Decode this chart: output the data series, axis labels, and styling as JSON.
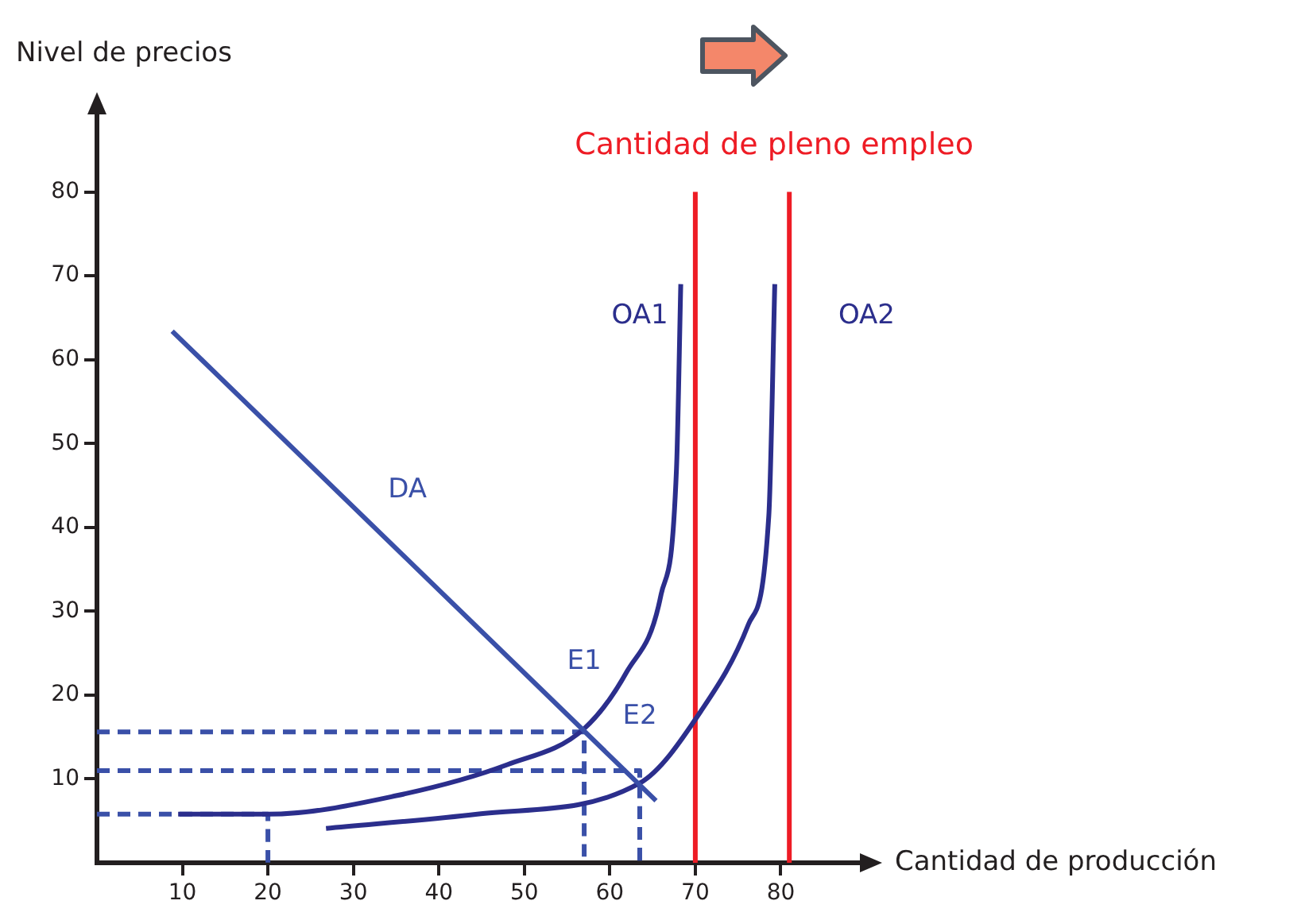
{
  "chart_data": {
    "type": "line",
    "xlabel": "Cantidad de producción",
    "ylabel": "Nivel de precios",
    "xlim": [
      0,
      90
    ],
    "ylim": [
      0,
      90
    ],
    "xticks": [
      10,
      20,
      30,
      40,
      50,
      60,
      70,
      80
    ],
    "yticks": [
      10,
      20,
      30,
      40,
      50,
      60,
      70,
      80
    ],
    "grid": false,
    "legend": false,
    "marker": "none",
    "series": [
      {
        "name": "DA",
        "color": "#3a50a8",
        "x": [
          8.8,
          65.4
        ],
        "values": [
          63.4,
          7.4
        ]
      },
      {
        "name": "OA1",
        "color": "#2b2e8c",
        "x": [
          9.5,
          20,
          35,
          48,
          57,
          62,
          66,
          67.8,
          68.3
        ],
        "values": [
          5.8,
          5.8,
          8,
          11.7,
          16,
          22.8,
          32,
          47,
          69
        ]
      },
      {
        "name": "OA2",
        "color": "#2b2e8c",
        "x": [
          26.8,
          44.5,
          63.5,
          70.6,
          76.2,
          78.6,
          79.3
        ],
        "values": [
          4.1,
          5.8,
          9.5,
          18,
          28.4,
          41.4,
          69
        ]
      },
      {
        "color": "#ee1c25",
        "x": [
          70,
          70
        ],
        "values": [
          0,
          80
        ]
      },
      {
        "color": "#ee1c25",
        "x": [
          81,
          81
        ],
        "values": [
          0,
          80
        ]
      },
      {
        "color": "#3a50a8",
        "line_style": "dashed",
        "x": [
          0,
          57,
          57
        ],
        "values": [
          15.6,
          15.6,
          0
        ]
      },
      {
        "color": "#3a50a8",
        "line_style": "dashed",
        "x": [
          0,
          63.5,
          63.5
        ],
        "values": [
          11,
          11,
          0
        ]
      },
      {
        "color": "#3a50a8",
        "line_style": "dashed",
        "x": [
          0,
          20,
          20
        ],
        "values": [
          5.8,
          5.8,
          0
        ]
      }
    ],
    "annotations": [
      {
        "text": "E1",
        "x": 57,
        "y": 16
      },
      {
        "text": "E2",
        "x": 63.5,
        "y": 9.5
      },
      "Cantidad de pleno empleo"
    ]
  }
}
